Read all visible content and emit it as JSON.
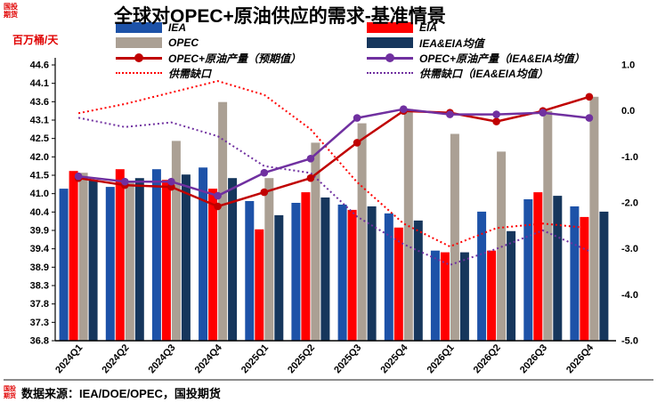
{
  "watermark": {
    "line1": "国投",
    "line2": "期货"
  },
  "title": "全球对OPEC+原油供应的需求-基准情景",
  "y_left_label": "百万桶/天",
  "source": "数据来源：IEA/DOE/OPEC，国投期货",
  "colors": {
    "iea_bar": "#1D52A8",
    "eia_bar": "#FF0000",
    "opec_bar": "#ABA094",
    "avg_bar": "#16365C",
    "prod_expected_line": "#C00000",
    "prod_avg_line": "#7030A0",
    "gap_dotted": "#FF0000",
    "gap_avg_dotted": "#7030A0"
  },
  "legend": [
    {
      "label": "IEA",
      "type": "bar",
      "color": "#1D52A8"
    },
    {
      "label": "EIA",
      "type": "bar",
      "color": "#FF0000"
    },
    {
      "label": "OPEC",
      "type": "bar",
      "color": "#ABA094"
    },
    {
      "label": "IEA&EIA均值",
      "type": "bar",
      "color": "#16365C"
    },
    {
      "label": "OPEC+原油产量（预期值）",
      "type": "line",
      "color": "#C00000"
    },
    {
      "label": "OPEC+原油产量（IEA&EIA均值）",
      "type": "line",
      "color": "#7030A0"
    },
    {
      "label": "供需缺口",
      "type": "dotted",
      "color": "#FF0000"
    },
    {
      "label": "供需缺口（IEA&EIA均值）",
      "type": "dotted",
      "color": "#7030A0"
    }
  ],
  "chart_data": {
    "type": "bar+line",
    "title": "全球对OPEC+原油供应的需求-基准情景",
    "ylabel_left": "百万桶/天",
    "categories": [
      "2024Q1",
      "2024Q2",
      "2024Q3",
      "2024Q4",
      "2025Q1",
      "2025Q2",
      "2025Q3",
      "2025Q4",
      "2026Q1",
      "2026Q2",
      "2026Q3",
      "2026Q4"
    ],
    "bar_series": [
      {
        "name": "IEA",
        "color": "#1D52A8",
        "axis": "left",
        "values": [
          41.1,
          41.15,
          41.65,
          41.7,
          40.75,
          40.7,
          40.65,
          40.4,
          39.35,
          40.45,
          40.8,
          40.6
        ]
      },
      {
        "name": "EIA",
        "color": "#FF0000",
        "axis": "left",
        "values": [
          41.6,
          41.65,
          41.35,
          41.1,
          39.95,
          41.0,
          40.5,
          40.0,
          39.3,
          39.35,
          41.0,
          40.3
        ]
      },
      {
        "name": "OPEC",
        "color": "#ABA094",
        "axis": "left",
        "values": [
          41.55,
          41.3,
          42.45,
          43.55,
          41.4,
          42.4,
          42.95,
          43.35,
          42.65,
          42.15,
          43.3,
          43.7
        ]
      },
      {
        "name": "IEA&EIA均值",
        "color": "#16365C",
        "axis": "left",
        "values": [
          41.35,
          41.4,
          41.5,
          41.4,
          40.35,
          40.85,
          40.6,
          40.2,
          39.3,
          39.9,
          40.9,
          40.45
        ]
      }
    ],
    "line_series": [
      {
        "name": "OPEC+原油产量（预期值）",
        "color": "#C00000",
        "axis": "left",
        "values": [
          41.4,
          41.2,
          41.15,
          40.6,
          41.0,
          41.4,
          42.4,
          43.3,
          43.25,
          43.0,
          43.3,
          43.7
        ]
      },
      {
        "name": "OPEC+原油产量（IEA&EIA均值）",
        "color": "#7030A0",
        "axis": "left",
        "values": [
          41.45,
          41.3,
          41.3,
          40.9,
          41.55,
          41.95,
          43.1,
          43.35,
          43.2,
          43.2,
          43.25,
          43.1
        ]
      }
    ],
    "dotted_series": [
      {
        "name": "供需缺口",
        "color": "#FF0000",
        "axis": "right",
        "values": [
          -0.05,
          0.15,
          0.4,
          0.65,
          0.35,
          -0.4,
          -1.55,
          -2.45,
          -2.95,
          -2.55,
          -2.45,
          -2.55
        ]
      },
      {
        "name": "供需缺口（IEA&EIA均值）",
        "color": "#7030A0",
        "axis": "right",
        "values": [
          -0.15,
          -0.35,
          -0.25,
          -0.55,
          -1.2,
          -1.35,
          -2.3,
          -2.9,
          -3.35,
          -3.0,
          -2.6,
          -3.05
        ]
      }
    ],
    "y_left": {
      "min": 36.8,
      "max": 44.6,
      "ticks": [
        "44.6",
        "44.1",
        "43.6",
        "43.1",
        "42.5",
        "42.0",
        "41.5",
        "41.0",
        "40.4",
        "39.9",
        "39.4",
        "38.9",
        "38.3",
        "37.8",
        "37.3",
        "36.8"
      ]
    },
    "y_right": {
      "min": -5.0,
      "max": 1.0,
      "ticks": [
        "1.0",
        "0.0",
        "-1.0",
        "-2.0",
        "-3.0",
        "-4.0",
        "-5.0"
      ]
    },
    "grid": false,
    "legend_position": "top"
  }
}
